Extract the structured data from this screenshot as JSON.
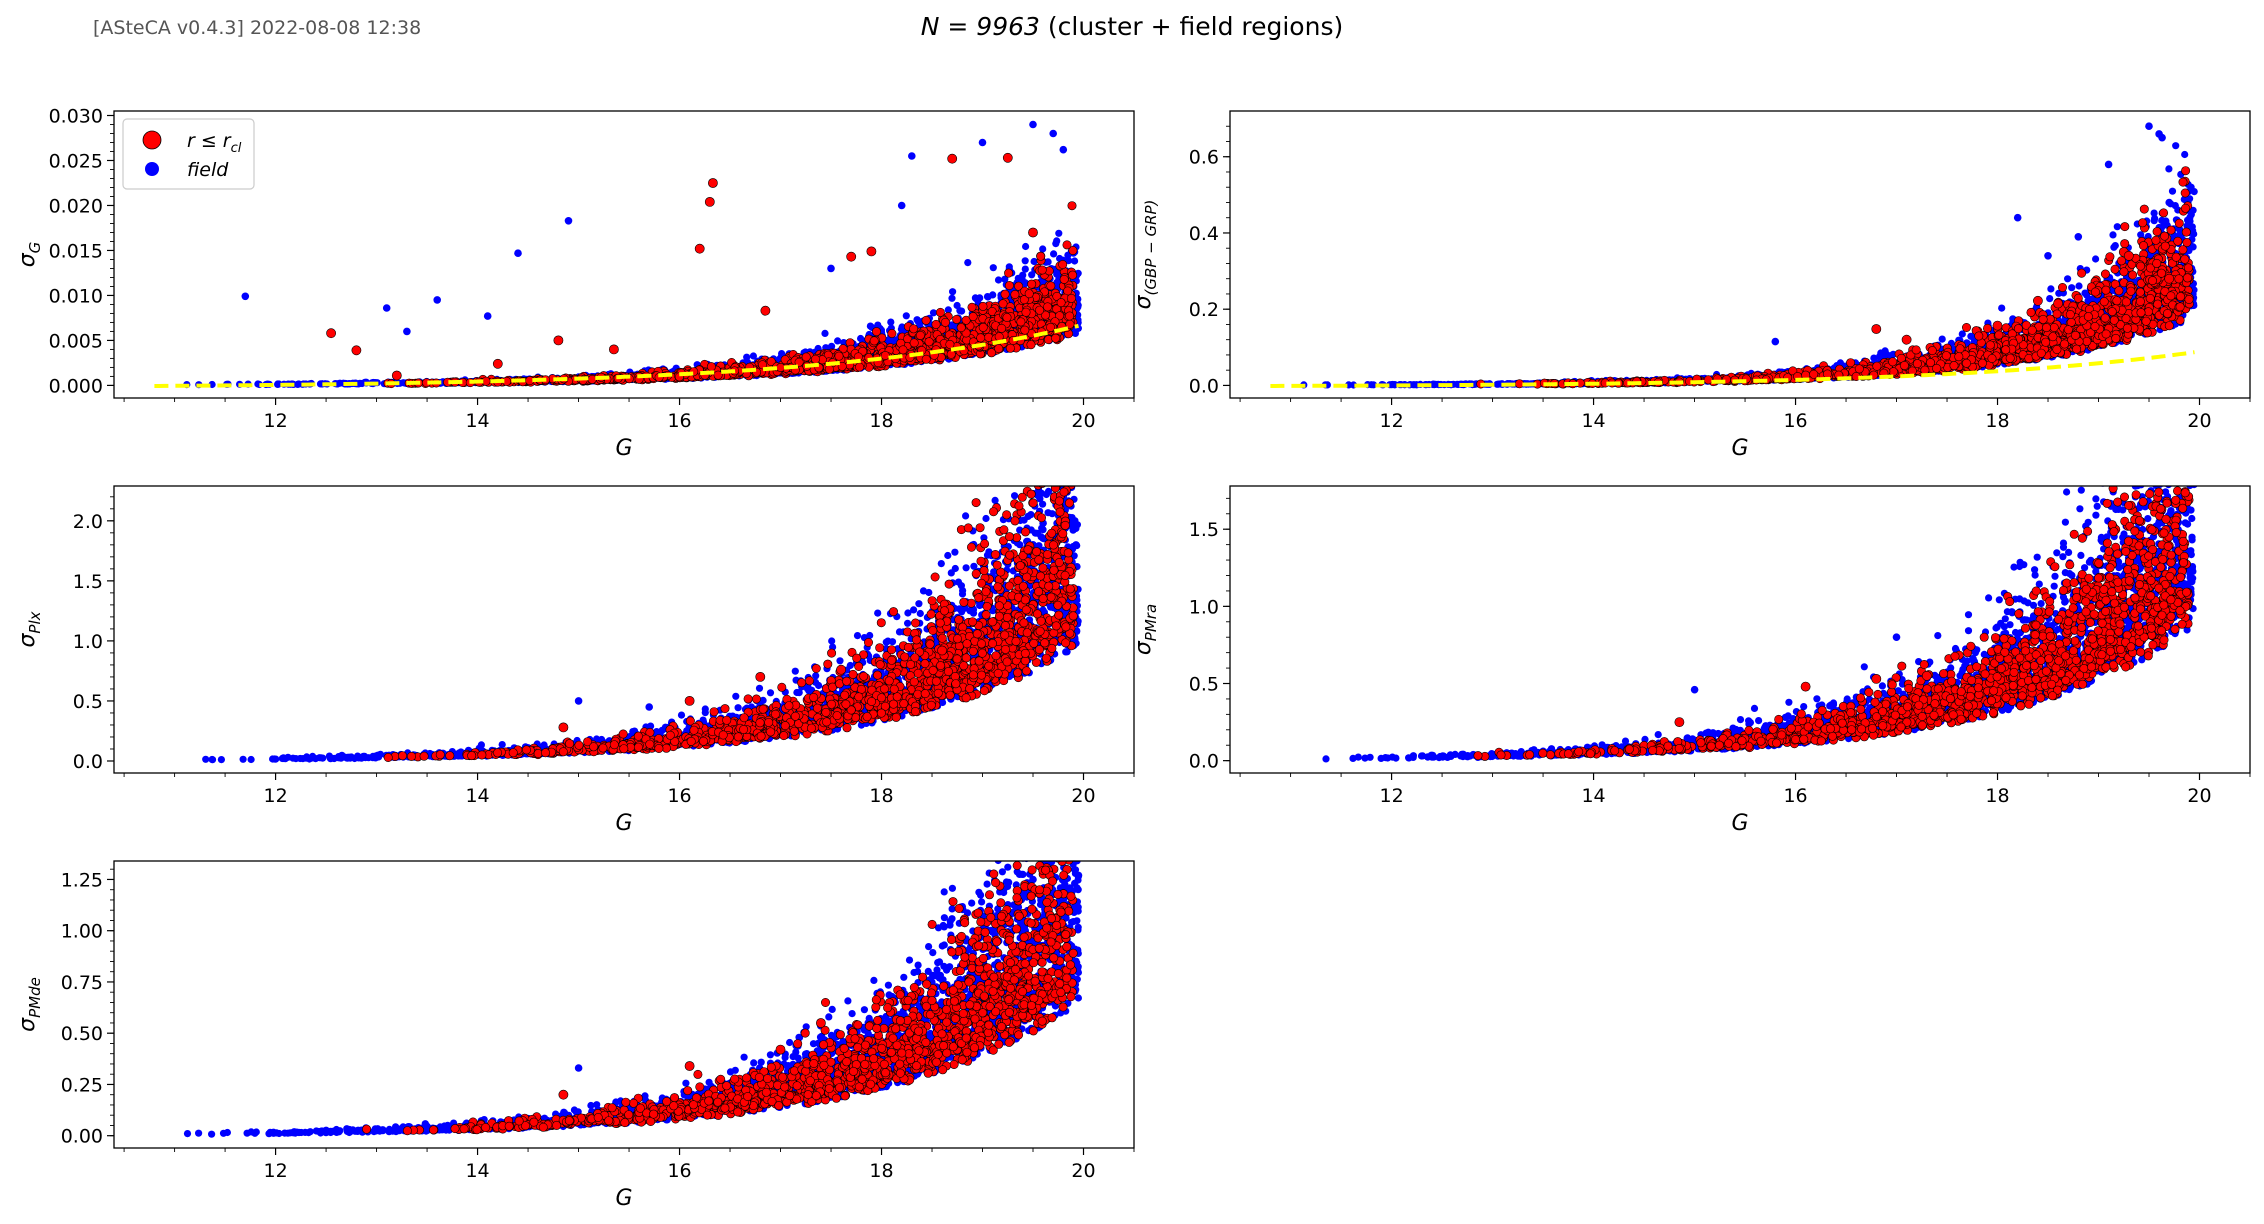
{
  "header": {
    "version": "[ASteCA v0.4.3] 2022-08-08 12:38",
    "title_prefix": "N = 9963",
    "title_suffix": "(cluster + field regions)"
  },
  "colors": {
    "field": "#0000ff",
    "cluster": "#ff0000",
    "cluster_edge": "#000000",
    "fit": "#ffff00"
  },
  "legend": {
    "cluster": "r ≤ r_cl",
    "field": "field"
  },
  "chart_data": [
    {
      "type": "scatter",
      "id": "sigma_G",
      "xlabel": "G",
      "ylabel": "σ_G",
      "xlim": [
        10.4,
        20.5
      ],
      "ylim": [
        -0.0014,
        0.0305
      ],
      "xticks": [
        12,
        14,
        16,
        18,
        20
      ],
      "yticks": [
        0.0,
        0.005,
        0.01,
        0.015,
        0.02,
        0.025,
        0.03
      ],
      "yticklabels": [
        "0.000",
        "0.005",
        "0.010",
        "0.015",
        "0.020",
        "0.025",
        "0.030"
      ],
      "legend_position": "top-left",
      "series": [
        {
          "name": "r ≤ r_cl",
          "error_model": {
            "a": 0.00014,
            "g0": 12.5,
            "tau": 1.93,
            "spread": 0.6,
            "g_min": 12.6,
            "g_max": 19.9,
            "n": 1500
          },
          "outliers": [
            [
              12.55,
              0.0058
            ],
            [
              12.8,
              0.0039
            ],
            [
              13.2,
              0.0011
            ],
            [
              14.2,
              0.0024
            ],
            [
              14.8,
              0.005
            ],
            [
              15.35,
              0.004
            ],
            [
              16.2,
              0.0152
            ],
            [
              16.3,
              0.0204
            ],
            [
              16.33,
              0.0225
            ],
            [
              16.85,
              0.0083
            ],
            [
              17.7,
              0.0143
            ],
            [
              17.9,
              0.0149
            ],
            [
              18.7,
              0.0252
            ],
            [
              19.25,
              0.0253
            ],
            [
              19.5,
              0.017
            ]
          ]
        },
        {
          "name": "field",
          "error_model": {
            "a": 0.00014,
            "g0": 12.5,
            "tau": 1.93,
            "spread": 0.7,
            "g_min": 10.8,
            "g_max": 19.95,
            "n": 2600
          },
          "outliers": [
            [
              11.7,
              0.0099
            ],
            [
              13.1,
              0.0086
            ],
            [
              13.6,
              0.0095
            ],
            [
              14.4,
              0.0147
            ],
            [
              14.9,
              0.0183
            ],
            [
              13.3,
              0.006
            ],
            [
              14.1,
              0.0077
            ],
            [
              18.3,
              0.0255
            ],
            [
              19.0,
              0.027
            ],
            [
              19.5,
              0.029
            ],
            [
              19.7,
              0.028
            ],
            [
              19.8,
              0.0262
            ],
            [
              17.5,
              0.013
            ],
            [
              18.2,
              0.02
            ]
          ]
        }
      ],
      "fit": {
        "a": 0.0003,
        "g0": 11.8,
        "tau": 2.6,
        "label_series": "fit"
      }
    },
    {
      "type": "scatter",
      "id": "sigma_color",
      "xlabel": "G",
      "ylabel": "σ_(G_BP − G_RP)",
      "xlim": [
        10.4,
        20.5
      ],
      "ylim": [
        -0.033,
        0.72
      ],
      "xticks": [
        12,
        14,
        16,
        18,
        20
      ],
      "yticks": [
        0.0,
        0.2,
        0.4,
        0.6
      ],
      "yticklabels": [
        "0.0",
        "0.2",
        "0.4",
        "0.6"
      ],
      "series": [
        {
          "name": "r ≤ r_cl",
          "error_model": {
            "a": 0.002,
            "g0": 12.5,
            "tau": 1.6,
            "spread": 0.7,
            "g_min": 12.6,
            "g_max": 19.9,
            "n": 1500
          },
          "outliers": [
            [
              16.8,
              0.148
            ],
            [
              17.1,
              0.12
            ],
            [
              18.0,
              0.157
            ],
            [
              18.4,
              0.222
            ],
            [
              18.6,
              0.215
            ],
            [
              19.25,
              0.35
            ],
            [
              19.3,
              0.34
            ],
            [
              19.7,
              0.28
            ]
          ]
        },
        {
          "name": "field",
          "error_model": {
            "a": 0.002,
            "g0": 12.5,
            "tau": 1.6,
            "spread": 0.75,
            "g_min": 10.8,
            "g_max": 19.95,
            "n": 2600
          },
          "outliers": [
            [
              15.8,
              0.115
            ],
            [
              18.2,
              0.44
            ],
            [
              19.1,
              0.58
            ],
            [
              19.5,
              0.68
            ],
            [
              19.6,
              0.66
            ],
            [
              19.63,
              0.65
            ],
            [
              19.7,
              0.48
            ],
            [
              18.8,
              0.39
            ],
            [
              19.8,
              0.38
            ],
            [
              18.5,
              0.34
            ]
          ]
        }
      ],
      "fit": {
        "a": 0.004,
        "g0": 12.3,
        "tau": 2.45,
        "label_series": "fit"
      }
    },
    {
      "type": "scatter",
      "id": "sigma_plx",
      "xlabel": "G",
      "ylabel": "σ_Plx",
      "xlim": [
        10.4,
        20.5
      ],
      "ylim": [
        -0.1,
        2.29
      ],
      "xticks": [
        12,
        14,
        16,
        18,
        20
      ],
      "yticks": [
        0.0,
        0.5,
        1.0,
        1.5,
        2.0
      ],
      "yticklabels": [
        "0.0",
        "0.5",
        "1.0",
        "1.5",
        "2.0"
      ],
      "series": [
        {
          "name": "r ≤ r_cl",
          "error_model": {
            "a": 0.02,
            "g0": 12.5,
            "tau": 1.85,
            "spread": 0.8,
            "g_min": 12.6,
            "g_max": 19.9,
            "n": 1500
          },
          "outliers": [
            [
              14.85,
              0.28
            ],
            [
              16.1,
              0.5
            ],
            [
              16.8,
              0.7
            ],
            [
              17.6,
              0.76
            ],
            [
              18.6,
              0.92
            ]
          ]
        },
        {
          "name": "field",
          "error_model": {
            "a": 0.02,
            "g0": 12.5,
            "tau": 1.85,
            "spread": 0.85,
            "g_min": 10.8,
            "g_max": 19.95,
            "n": 2600
          },
          "outliers": [
            [
              15.0,
              0.5
            ],
            [
              15.7,
              0.45
            ],
            [
              19.6,
              1.98
            ],
            [
              19.8,
              2.2
            ],
            [
              19.5,
              1.8
            ]
          ]
        }
      ]
    },
    {
      "type": "scatter",
      "id": "sigma_pmra",
      "xlabel": "G",
      "ylabel": "σ_PMra",
      "xlim": [
        10.4,
        20.5
      ],
      "ylim": [
        -0.08,
        1.78
      ],
      "xticks": [
        12,
        14,
        16,
        18,
        20
      ],
      "yticks": [
        0.0,
        0.5,
        1.0,
        1.5
      ],
      "yticklabels": [
        "0.0",
        "0.5",
        "1.0",
        "1.5"
      ],
      "series": [
        {
          "name": "r ≤ r_cl",
          "error_model": {
            "a": 0.02,
            "g0": 12.5,
            "tau": 1.9,
            "spread": 0.75,
            "g_min": 12.6,
            "g_max": 19.9,
            "n": 1500
          },
          "outliers": [
            [
              14.85,
              0.25
            ],
            [
              16.1,
              0.48
            ],
            [
              16.8,
              0.53
            ],
            [
              17.3,
              0.55
            ]
          ]
        },
        {
          "name": "field",
          "error_model": {
            "a": 0.02,
            "g0": 12.5,
            "tau": 1.9,
            "spread": 0.85,
            "g_min": 10.8,
            "g_max": 19.95,
            "n": 2600
          },
          "outliers": [
            [
              15.0,
              0.46
            ],
            [
              17.0,
              0.8
            ],
            [
              19.6,
              1.7
            ],
            [
              19.7,
              1.68
            ],
            [
              19.4,
              1.55
            ]
          ]
        }
      ]
    },
    {
      "type": "scatter",
      "id": "sigma_pmde",
      "xlabel": "G",
      "ylabel": "σ_PMde",
      "xlim": [
        10.4,
        20.5
      ],
      "ylim": [
        -0.06,
        1.34
      ],
      "xticks": [
        12,
        14,
        16,
        18,
        20
      ],
      "yticks": [
        0.0,
        0.25,
        0.5,
        0.75,
        1.0,
        1.25
      ],
      "yticklabels": [
        "0.00",
        "0.25",
        "0.50",
        "0.75",
        "1.00",
        "1.25"
      ],
      "series": [
        {
          "name": "r ≤ r_cl",
          "error_model": {
            "a": 0.015,
            "g0": 12.5,
            "tau": 1.9,
            "spread": 0.75,
            "g_min": 12.6,
            "g_max": 19.9,
            "n": 1500
          },
          "outliers": [
            [
              14.85,
              0.2
            ],
            [
              16.1,
              0.34
            ],
            [
              17.0,
              0.42
            ],
            [
              17.4,
              0.55
            ]
          ]
        },
        {
          "name": "field",
          "error_model": {
            "a": 0.015,
            "g0": 12.5,
            "tau": 1.9,
            "spread": 0.85,
            "g_min": 10.8,
            "g_max": 19.95,
            "n": 2600
          },
          "outliers": [
            [
              15.0,
              0.33
            ],
            [
              19.5,
              1.25
            ],
            [
              19.65,
              1.3
            ],
            [
              19.95,
              1.27
            ],
            [
              19.8,
              1.17
            ]
          ]
        }
      ]
    }
  ]
}
